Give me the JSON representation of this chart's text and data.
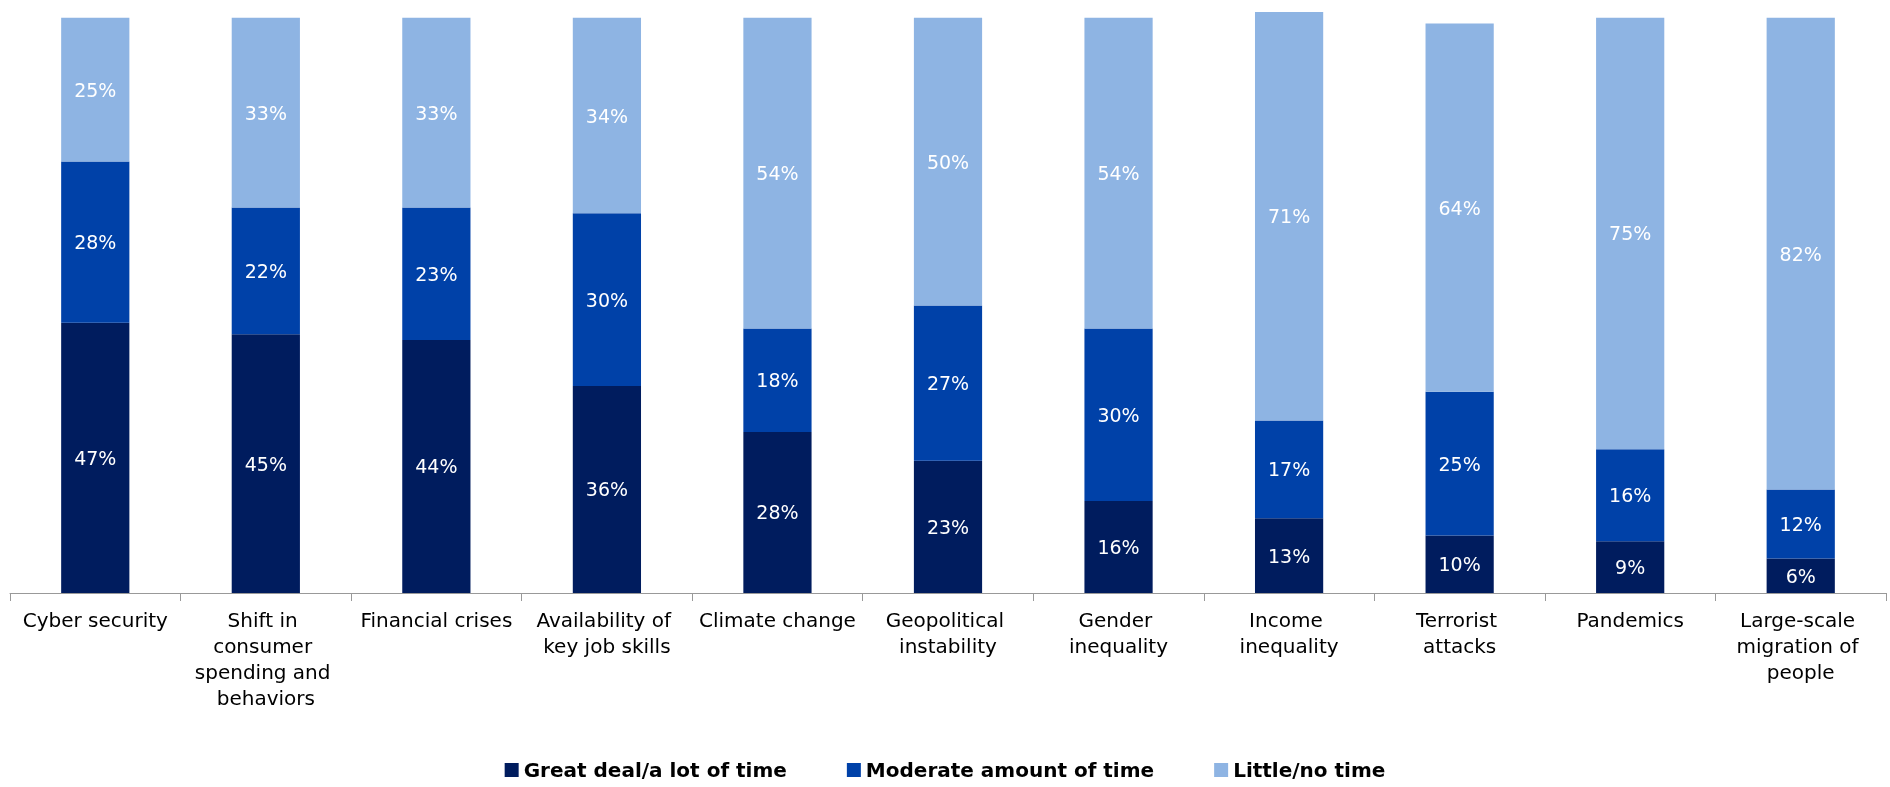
{
  "chart_data": {
    "type": "bar",
    "stacked": true,
    "legend": "bottom",
    "categories": [
      "Cyber security",
      "Shift in consumer spending and behaviors",
      "Financial crises",
      "Availability of key job skills",
      "Climate change",
      "Geopolitical instability",
      "Gender inequality",
      "Income inequality",
      "Terrorist attacks",
      "Pandemics",
      "Large-scale migration of people"
    ],
    "series": [
      {
        "name": "Great deal/a lot of time",
        "color": "#001c5e",
        "values": [
          47,
          45,
          44,
          36,
          28,
          23,
          16,
          13,
          10,
          9,
          6
        ],
        "value_labels": [
          "47%",
          "45%",
          "44%",
          "36%",
          "28%",
          "23%",
          "16%",
          "13%",
          "10%",
          "9%",
          "6%"
        ]
      },
      {
        "name": "Moderate amount of time",
        "color": "#0041a8",
        "values": [
          28,
          22,
          23,
          30,
          18,
          27,
          30,
          17,
          25,
          16,
          12
        ],
        "value_labels": [
          "28%",
          "22%",
          "23%",
          "30%",
          "18%",
          "27%",
          "30%",
          "17%",
          "25%",
          "16%",
          "12%"
        ]
      },
      {
        "name": "Little/no time",
        "color": "#8eb4e3",
        "values": [
          25,
          33,
          33,
          34,
          54,
          50,
          54,
          71,
          64,
          75,
          82
        ],
        "value_labels": [
          "25%",
          "33%",
          "33%",
          "34%",
          "54%",
          "50%",
          "54%",
          "71%",
          "64%",
          "75%",
          "82%"
        ]
      }
    ]
  }
}
